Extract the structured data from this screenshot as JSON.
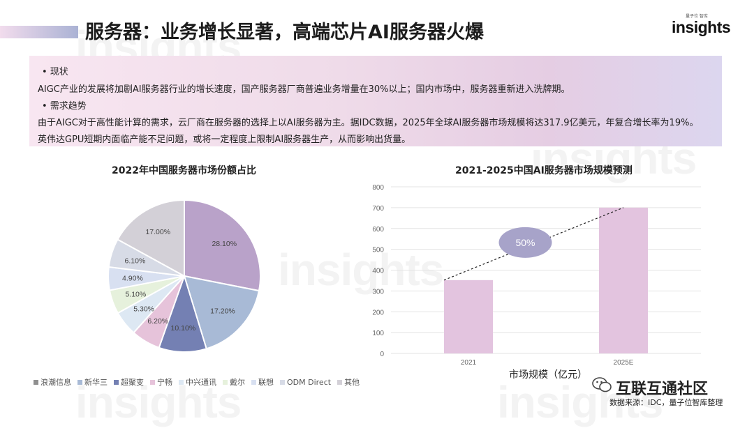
{
  "header": {
    "title": "服务器：业务增长显著，高端芯片AI服务器火爆",
    "logo_small": "量子位 智库",
    "logo_text": "insights",
    "watermark": "insights"
  },
  "info": {
    "heading1": "• 现状",
    "text1": "AIGC产业的发展将加剧AI服务器行业的增长速度，国产服务器厂商普遍业务增量在30%以上；国内市场中，服务器重新进入洗牌期。",
    "heading2": "• 需求趋势",
    "text2": "由于AIGC对于高性能计算的需求，云厂商在服务器的选择上以AI服务器为主。据IDC数据，2025年全球AI服务器市场规模将达317.9亿美元，年复合增长率为19%。",
    "text3": "英伟达GPU短期内面临产能不足问题，或将一定程度上限制AI服务器生产，从而影响出货量。"
  },
  "chart_data": [
    {
      "type": "pie",
      "title": "2022年中国服务器市场份额占比",
      "categories": [
        "浪潮信息",
        "新华三",
        "超聚变",
        "宁畅",
        "中兴通讯",
        "戴尔",
        "联想",
        "ODM Direct",
        "其他"
      ],
      "values": [
        28.1,
        17.2,
        10.1,
        6.2,
        5.3,
        5.1,
        4.9,
        6.1,
        17.0
      ],
      "labels": [
        "28.10%",
        "17.20%",
        "10.10%",
        "6.20%",
        "5.30%",
        "5.10%",
        "4.90%",
        "6.10%",
        "17.00%"
      ],
      "colors": [
        "#b9a2c9",
        "#a8bad6",
        "#7480b3",
        "#e6c3da",
        "#dde8f3",
        "#e6f1dc",
        "#d8e0f1",
        "#d7dbe6",
        "#d3d0d7"
      ],
      "legend": "bottom"
    },
    {
      "type": "bar",
      "title": "2021-2025中国AI服务器市场规模预测",
      "categories": [
        "2021",
        "2025E"
      ],
      "values": [
        352,
        700
      ],
      "xlabel": "市场规模（亿元）",
      "ylim": [
        0,
        800
      ],
      "yticks": [
        0,
        100,
        200,
        300,
        400,
        500,
        600,
        700,
        800
      ],
      "grid": true,
      "color": "#e3c4df",
      "annotation": "50%",
      "annotation_color": "#a7a3c9"
    }
  ],
  "footer": {
    "wechat_name": "互联互通社区",
    "source": "数据来源：IDC，量子位智库整理"
  }
}
